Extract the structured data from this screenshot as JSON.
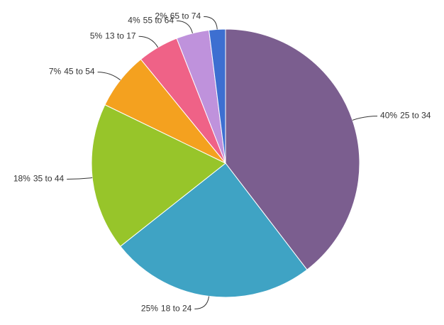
{
  "chart_data": {
    "type": "pie",
    "categories": [
      "25 to 34",
      "18 to 24",
      "35 to 44",
      "45 to 54",
      "13 to 17",
      "55 to 64",
      "65 to 74"
    ],
    "values": [
      40,
      25,
      18,
      7,
      5,
      4,
      2
    ],
    "value_labels": [
      "40%",
      "25%",
      "18%",
      "7%",
      "5%",
      "4%",
      "2%"
    ],
    "colors": [
      "#7b5e8f",
      "#3fa3c4",
      "#97c52a",
      "#f4a11f",
      "#ef6287",
      "#bf92dc",
      "#3d6fd1"
    ]
  }
}
